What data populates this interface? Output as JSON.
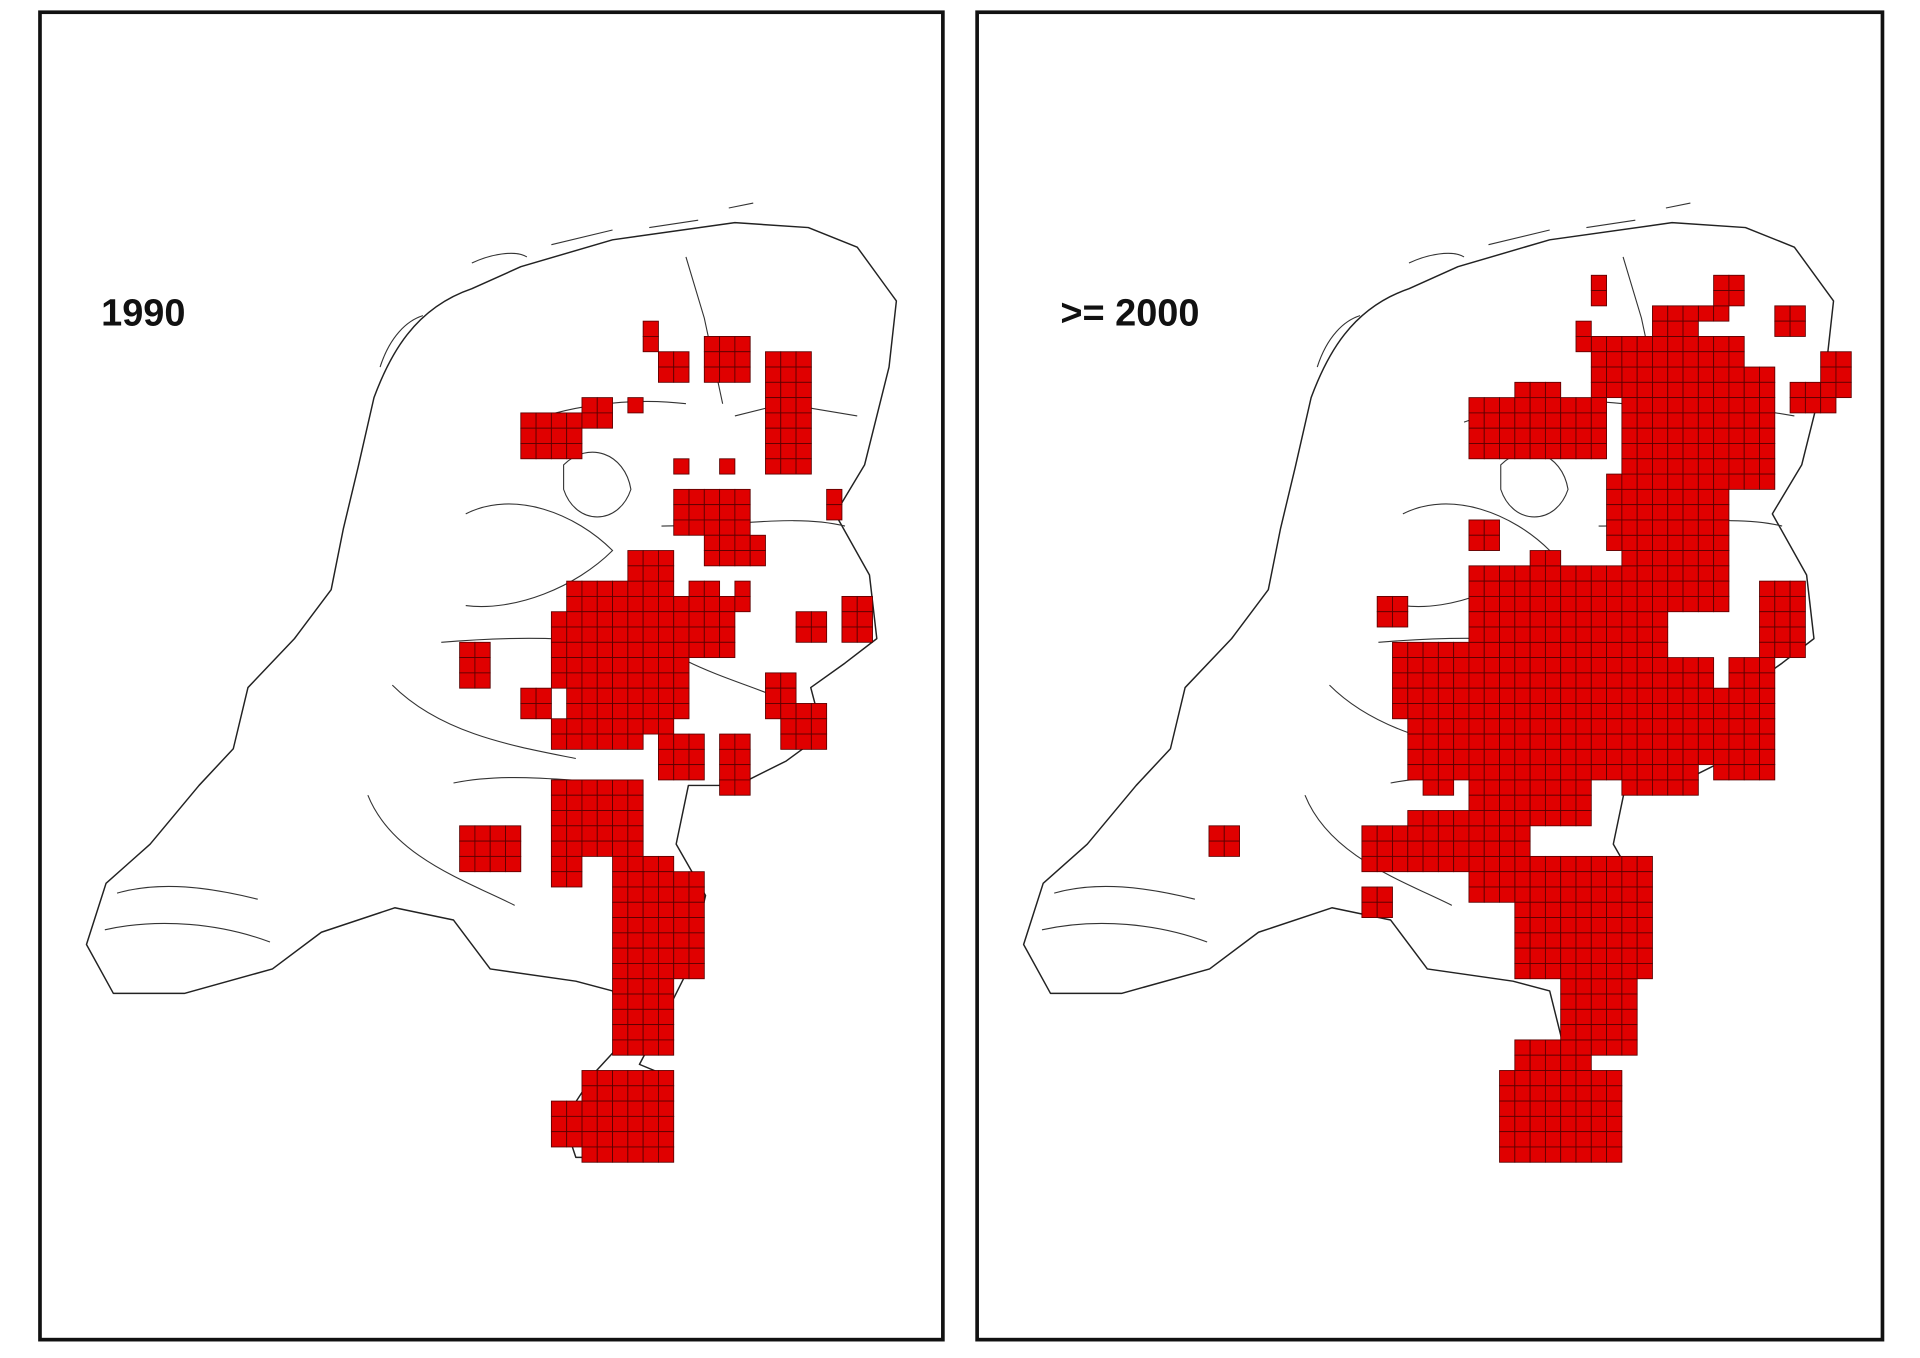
{
  "panels": [
    {
      "label": "1990"
    },
    {
      "label": ">= 2000"
    }
  ]
}
